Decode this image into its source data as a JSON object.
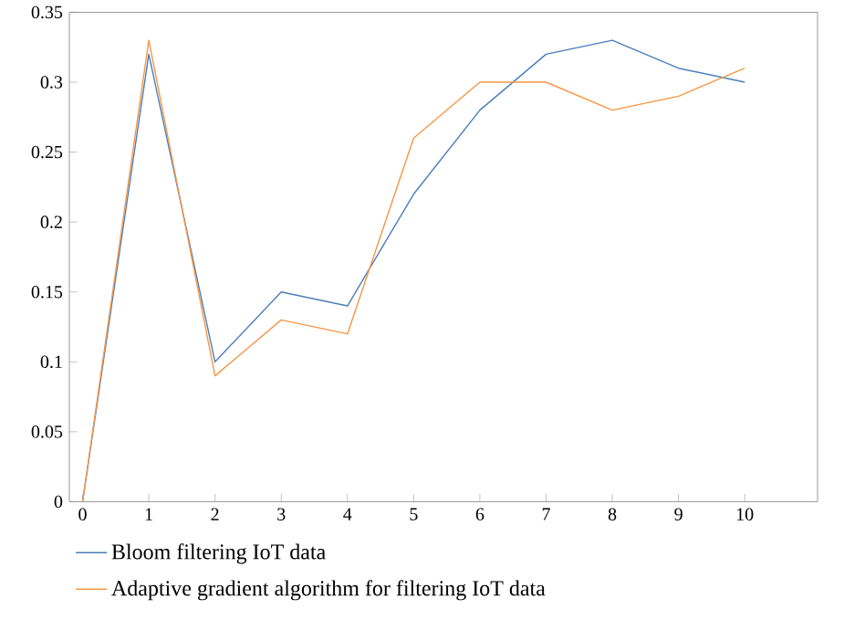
{
  "chart_data": {
    "type": "line",
    "x": [
      0,
      1,
      2,
      3,
      4,
      5,
      6,
      7,
      8,
      9,
      10
    ],
    "series": [
      {
        "name": "Bloom filtering IoT data",
        "color": "#4a7ebb",
        "values": [
          0,
          0.32,
          0.1,
          0.15,
          0.14,
          0.22,
          0.28,
          0.32,
          0.33,
          0.31,
          0.3
        ]
      },
      {
        "name": "Adaptive gradient algorithm for filtering IoT data",
        "color": "#f79646",
        "values": [
          0,
          0.33,
          0.09,
          0.13,
          0.12,
          0.26,
          0.3,
          0.3,
          0.28,
          0.29,
          0.31
        ]
      }
    ],
    "xlim": [
      -0.2,
      11.1
    ],
    "xticks": [
      0,
      1,
      2,
      3,
      4,
      5,
      6,
      7,
      8,
      9,
      10
    ],
    "ylim": [
      0,
      0.35
    ],
    "yticks": [
      0,
      0.05,
      0.1,
      0.15,
      0.2,
      0.25,
      0.3,
      0.35
    ],
    "grid": false,
    "legend": "bottom",
    "marker": "none",
    "line_style": "solid"
  }
}
